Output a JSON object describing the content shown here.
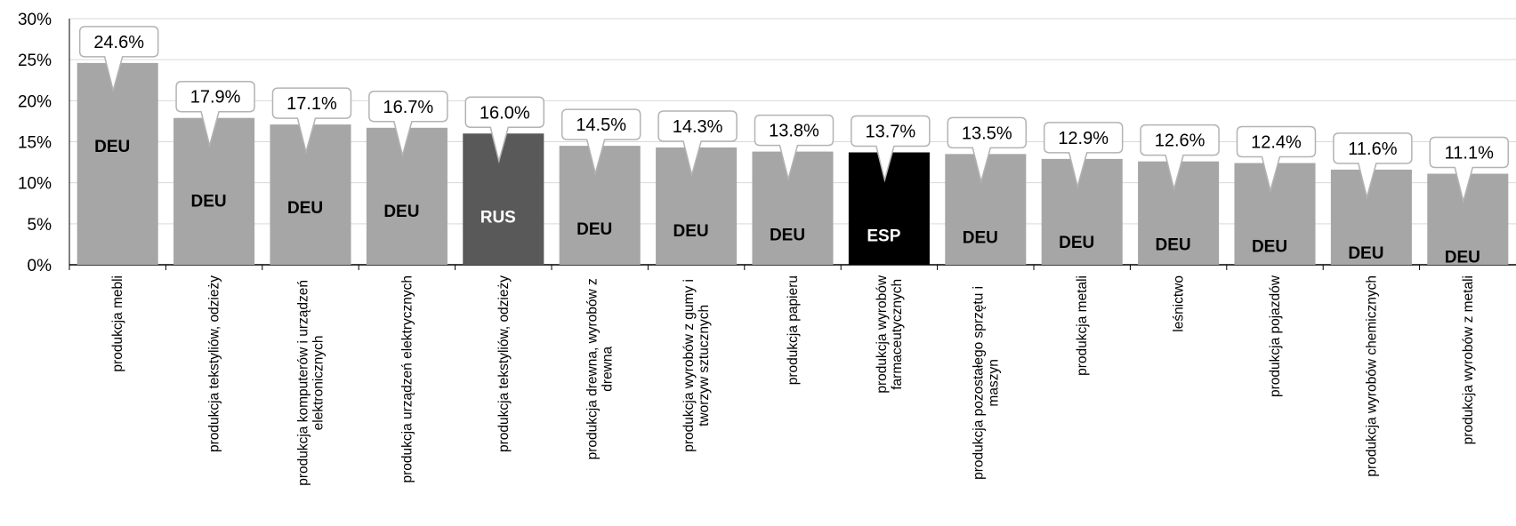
{
  "chart_data": {
    "type": "bar",
    "categories": [
      "produkcja mebli",
      "produkcja tekstyliów, odzieży",
      "produkcja komputerów i urządzeń elektronicznych",
      "produkcja urządzeń elektrycznych",
      "produkcja tekstyliów, odzieży",
      "produkcja drewna, wyrobów z drewna",
      "produkcja wyrobów z gumy i tworzyw sztucznych",
      "produkcja papieru",
      "produkcja wyrobów farmaceutycznych",
      "produkcja pozostałego sprzętu i maszyn",
      "produkcja metali",
      "leśnictwo",
      "produkcja pojazdów",
      "produkcja wyrobów chemicznych",
      "produkcja wyrobów z metali"
    ],
    "values": [
      24.6,
      17.9,
      17.1,
      16.7,
      16.0,
      14.5,
      14.3,
      13.8,
      13.7,
      13.5,
      12.9,
      12.6,
      12.4,
      11.6,
      11.1
    ],
    "value_labels": [
      "24.6%",
      "17.9%",
      "17.1%",
      "16.7%",
      "16.0%",
      "14.5%",
      "14.3%",
      "13.8%",
      "13.7%",
      "13.5%",
      "12.9%",
      "12.6%",
      "12.4%",
      "11.6%",
      "11.1%"
    ],
    "bar_labels": [
      "DEU",
      "DEU",
      "DEU",
      "DEU",
      "RUS",
      "DEU",
      "DEU",
      "DEU",
      "ESP",
      "DEU",
      "DEU",
      "DEU",
      "DEU",
      "DEU",
      "DEU"
    ],
    "colors": [
      "#a6a6a6",
      "#a6a6a6",
      "#a6a6a6",
      "#a6a6a6",
      "#595959",
      "#a6a6a6",
      "#a6a6a6",
      "#a6a6a6",
      "#000000",
      "#a6a6a6",
      "#a6a6a6",
      "#a6a6a6",
      "#a6a6a6",
      "#a6a6a6",
      "#a6a6a6"
    ],
    "ylim": [
      0,
      30
    ],
    "yticks": [
      {
        "value": 0,
        "label": "0%"
      },
      {
        "value": 5,
        "label": "5%"
      },
      {
        "value": 10,
        "label": "10%"
      },
      {
        "value": 15,
        "label": "15%"
      },
      {
        "value": 20,
        "label": "20%"
      },
      {
        "value": 25,
        "label": "25%"
      },
      {
        "value": 30,
        "label": "30%"
      }
    ],
    "grid": true
  }
}
